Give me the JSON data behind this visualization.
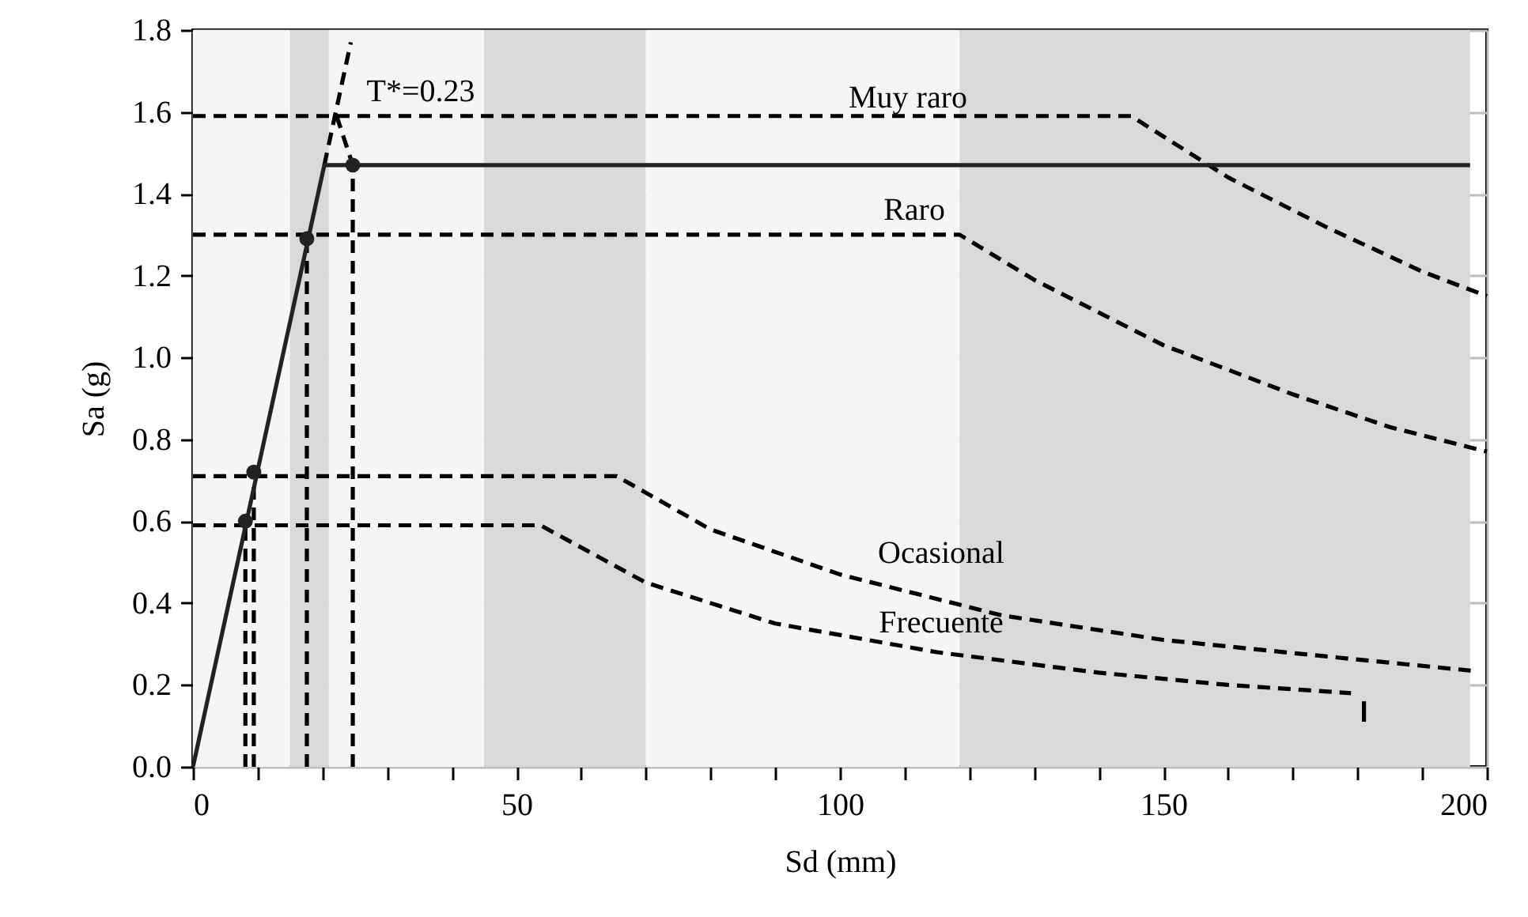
{
  "chart_data": {
    "type": "line",
    "xlabel": "Sd (mm)",
    "ylabel": "Sa (g)",
    "xlim": [
      0,
      200
    ],
    "ylim": [
      0,
      1.8
    ],
    "xticks": [
      0,
      {
        "value": 10,
        "label": null
      },
      {
        "value": 20,
        "label": null
      },
      {
        "value": 30,
        "label": null
      },
      {
        "value": 40,
        "label": null
      },
      50,
      {
        "value": 60,
        "label": null
      },
      {
        "value": 70,
        "label": null
      },
      {
        "value": 80,
        "label": null
      },
      {
        "value": 90,
        "label": null
      },
      100,
      {
        "value": 110,
        "label": null
      },
      {
        "value": 120,
        "label": null
      },
      {
        "value": 130,
        "label": null
      },
      {
        "value": 140,
        "label": null
      },
      150,
      {
        "value": 160,
        "label": null
      },
      {
        "value": 170,
        "label": null
      },
      {
        "value": 180,
        "label": null
      },
      {
        "value": 190,
        "label": null
      },
      200
    ],
    "yticks": [
      {
        "value": 0,
        "label": "0.0"
      },
      {
        "value": 0.2,
        "label": "0.2"
      },
      {
        "value": 0.4,
        "label": "0.4"
      },
      {
        "value": 0.6,
        "label": "0.6"
      },
      {
        "value": 0.8,
        "label": "0.8"
      },
      {
        "value": 1.0,
        "label": "1.0"
      },
      {
        "value": 1.2,
        "label": "1.2"
      },
      {
        "value": 1.4,
        "label": "1.4"
      },
      {
        "value": 1.6,
        "label": "1.6"
      },
      {
        "value": 1.8,
        "label": "1.8"
      }
    ],
    "grid": true,
    "bands": [
      {
        "axis": "x",
        "from": 0,
        "to": 15,
        "color": "#f5f5f5"
      },
      {
        "axis": "x",
        "from": 15,
        "to": 21,
        "color": "#d9d9d9"
      },
      {
        "axis": "x",
        "from": 21,
        "to": 45,
        "color": "#f5f5f5"
      },
      {
        "axis": "x",
        "from": 45,
        "to": 70,
        "color": "#d9d9d9"
      },
      {
        "axis": "x",
        "from": 70,
        "to": 118.5,
        "color": "#f5f5f5"
      },
      {
        "axis": "x",
        "from": 118.5,
        "to": 197.4,
        "color": "#d9d9d9"
      }
    ],
    "series": [
      {
        "color": "#000000",
        "line_style": "dashed",
        "x": [
          0,
          145,
          160,
          175,
          190,
          200
        ],
        "values": [
          1.59,
          1.59,
          1.44,
          1.32,
          1.21,
          1.15
        ]
      },
      {
        "color": "#000000",
        "line_style": "dashed",
        "x": [
          0,
          118.5,
          130,
          150,
          170,
          185,
          200
        ],
        "values": [
          1.3,
          1.3,
          1.19,
          1.03,
          0.91,
          0.83,
          0.77
        ]
      },
      {
        "color": "#000000",
        "line_style": "dashed",
        "x": [
          0,
          65.5,
          80,
          100,
          125,
          150,
          175,
          197.5
        ],
        "values": [
          0.71,
          0.71,
          0.58,
          0.47,
          0.37,
          0.31,
          0.27,
          0.235
        ]
      },
      {
        "color": "#000000",
        "line_style": "dashed",
        "x": [
          0,
          53.7,
          70,
          90,
          115,
          140,
          160,
          179
        ],
        "values": [
          0.59,
          0.59,
          0.45,
          0.35,
          0.28,
          0.23,
          0.2,
          0.18
        ]
      },
      {
        "color": "#000000",
        "line_style": "solid",
        "x": [
          181,
          181
        ],
        "values": [
          0.16,
          0.11
        ]
      },
      {
        "color": "#000000",
        "line_style": "dashed",
        "x": [
          8.1,
          8.1
        ],
        "values": [
          0,
          0.6
        ]
      },
      {
        "color": "#000000",
        "line_style": "dashed",
        "x": [
          9.4,
          9.4
        ],
        "values": [
          0,
          0.72
        ]
      },
      {
        "color": "#000000",
        "line_style": "dashed",
        "x": [
          17.6,
          17.6
        ],
        "values": [
          0,
          1.29
        ]
      },
      {
        "color": "#000000",
        "line_style": "dashed",
        "x": [
          24.7,
          24.7
        ],
        "values": [
          0,
          1.47
        ]
      },
      {
        "color": "#000000",
        "line_style": "dashed",
        "x": [
          20.3,
          24.4
        ],
        "values": [
          1.47,
          1.77
        ]
      },
      {
        "color": "#000000",
        "line_style": "dashed",
        "x": [
          22.2,
          24.7
        ],
        "values": [
          1.59,
          1.47
        ]
      },
      {
        "color": "#222222",
        "line_style": "solid",
        "x": [
          0,
          20.3,
          197.4
        ],
        "values": [
          0,
          1.47,
          1.47
        ]
      },
      {
        "type": "scatter",
        "color": "#222222",
        "marker": "circle",
        "x": [
          8.1,
          9.4,
          17.6,
          24.7
        ],
        "values": [
          0.6,
          0.72,
          1.29,
          1.47
        ]
      }
    ],
    "annotations": [
      "T*=0.23",
      "Muy raro",
      "Raro",
      "Ocasional",
      "Frecuente"
    ]
  }
}
